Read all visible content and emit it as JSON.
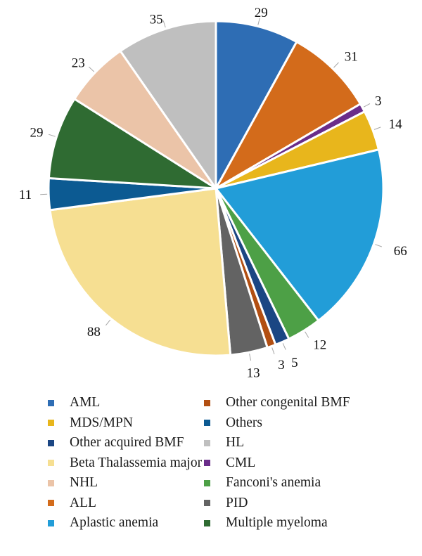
{
  "chart_data": {
    "type": "pie",
    "title": "",
    "start_angle_deg": 0,
    "direction": "clockwise",
    "slices": [
      {
        "label": "AML",
        "value": 29,
        "color": "#2e6db4"
      },
      {
        "label": "ALL",
        "value": 31,
        "color": "#d36b1b"
      },
      {
        "label": "CML",
        "value": 3,
        "color": "#6a2d8a"
      },
      {
        "label": "MDS/MPN",
        "value": 14,
        "color": "#e8b61c"
      },
      {
        "label": "Aplastic anemia",
        "value": 66,
        "color": "#229dd8"
      },
      {
        "label": "Fanconi's anemia",
        "value": 12,
        "color": "#4da046"
      },
      {
        "label": "Other acquired BMF",
        "value": 5,
        "color": "#1b4683"
      },
      {
        "label": "Other congenital BMF",
        "value": 3,
        "color": "#b24f12"
      },
      {
        "label": "PID",
        "value": 13,
        "color": "#636363"
      },
      {
        "label": "Beta Thalassemia major",
        "value": 88,
        "color": "#f6df92"
      },
      {
        "label": "Others",
        "value": 11,
        "color": "#0c5a92"
      },
      {
        "label": "Multiple myeloma",
        "value": 29,
        "color": "#2f6b32"
      },
      {
        "label": "NHL",
        "value": 23,
        "color": "#ebc4a8"
      },
      {
        "label": "HL",
        "value": 35,
        "color": "#bfbfbf"
      }
    ],
    "legend": {
      "placement": "bottom",
      "columns": [
        [
          "AML",
          "MDS/MPN",
          "Other acquired BMF",
          "Beta Thalassemia major",
          "NHL",
          "ALL",
          "Aplastic anemia"
        ],
        [
          "Other congenital BMF",
          "Others",
          "HL",
          "CML",
          "Fanconi's anemia",
          "PID",
          "Multiple myeloma"
        ]
      ]
    }
  }
}
